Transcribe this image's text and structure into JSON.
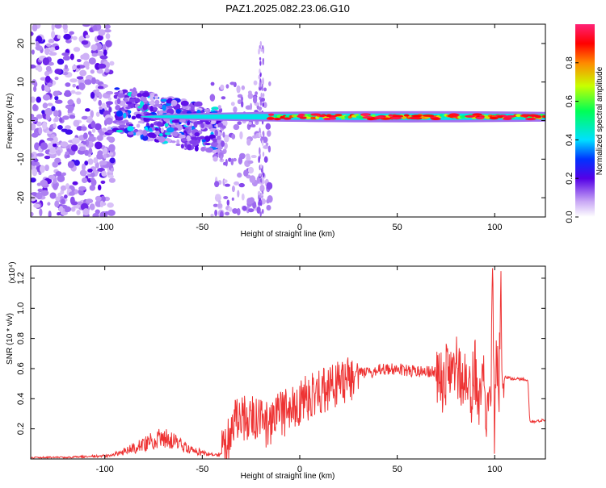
{
  "title": "PAZ1.2025.082.23.06.G10",
  "chart_data": [
    {
      "type": "heatmap",
      "xlabel": "Height of straight line (km)",
      "ylabel": "Frequency (Hz)",
      "xlim": [
        -138,
        126
      ],
      "ylim": [
        -25,
        25
      ],
      "xticks": [
        -100,
        -50,
        0,
        50,
        100
      ],
      "yticks": [
        20,
        10,
        0,
        -10,
        -20
      ],
      "grid": false,
      "colorbar": {
        "label": "Normalized spectral amplitude",
        "range": [
          0,
          1
        ],
        "ticks": [
          "0.0",
          "0.2",
          "0.4",
          "0.6",
          "0.8"
        ],
        "colormap": [
          "#ffffff",
          "#b38cf0",
          "#5a00e6",
          "#0033ff",
          "#00e6ff",
          "#00ff55",
          "#c8ff00",
          "#ff8800",
          "#ff0000",
          "#ff2277"
        ]
      },
      "features": [
        {
          "description": "scattered weak energy",
          "x_range": [
            -138,
            -95
          ],
          "freq_range": [
            -25,
            25
          ],
          "amplitude": 0.15
        },
        {
          "description": "descending stronger band",
          "x_range": [
            -95,
            -40
          ],
          "freq_range": [
            -7,
            6
          ],
          "amplitude": 0.3
        },
        {
          "description": "spur near -20 km",
          "x_range": [
            -22,
            -18
          ],
          "freq_range": [
            -25,
            20
          ],
          "amplitude": 0.1
        },
        {
          "description": "strong line near 1 Hz",
          "x_range": [
            -15,
            126
          ],
          "freq_center": 1,
          "amplitude": 0.9
        }
      ]
    },
    {
      "type": "line",
      "xlabel": "Height of straight line (km)",
      "ylabel": "SNR (10 * v/v)",
      "y_multiplier": "(x10⁴)",
      "xlim": [
        -138,
        126
      ],
      "ylim": [
        0,
        1.28
      ],
      "xticks": [
        -100,
        -50,
        0,
        50,
        100
      ],
      "yticks": [
        "0.2",
        "0.4",
        "0.6",
        "0.8",
        "1.0",
        "1.2"
      ],
      "grid": false,
      "color": "#ee3333",
      "series": [
        {
          "x": [
            -138,
            -120,
            -110,
            -100,
            -95,
            -90,
            -85,
            -80,
            -75,
            -70,
            -65,
            -60,
            -55,
            -50,
            -45,
            -40,
            -38,
            -35,
            -33,
            -30,
            -25,
            -20,
            -15,
            -10,
            -8,
            -5,
            0,
            5,
            10,
            15,
            20,
            25,
            30,
            35,
            40,
            45,
            50,
            55,
            60,
            65,
            70,
            72,
            74,
            76,
            78,
            80,
            85,
            88,
            90,
            92,
            94,
            96,
            97,
            98,
            99,
            100,
            101,
            102,
            103,
            104,
            110,
            115,
            117,
            118,
            119,
            120,
            126
          ],
          "y": [
            0.01,
            0.01,
            0.015,
            0.02,
            0.03,
            0.05,
            0.07,
            0.1,
            0.13,
            0.14,
            0.12,
            0.09,
            0.06,
            0.04,
            0.03,
            0.03,
            0.06,
            0.18,
            0.25,
            0.28,
            0.27,
            0.25,
            0.22,
            0.32,
            0.3,
            0.33,
            0.38,
            0.42,
            0.44,
            0.48,
            0.5,
            0.53,
            0.56,
            0.57,
            0.59,
            0.6,
            0.6,
            0.59,
            0.58,
            0.58,
            0.58,
            0.57,
            0.45,
            0.7,
            0.5,
            0.6,
            0.55,
            0.45,
            0.6,
            0.35,
            0.75,
            0.2,
            0.6,
            0.3,
            1.3,
            0.05,
            0.8,
            0.3,
            1.15,
            0.55,
            0.53,
            0.53,
            0.52,
            0.25,
            0.25,
            0.25,
            0.26
          ]
        }
      ]
    }
  ]
}
